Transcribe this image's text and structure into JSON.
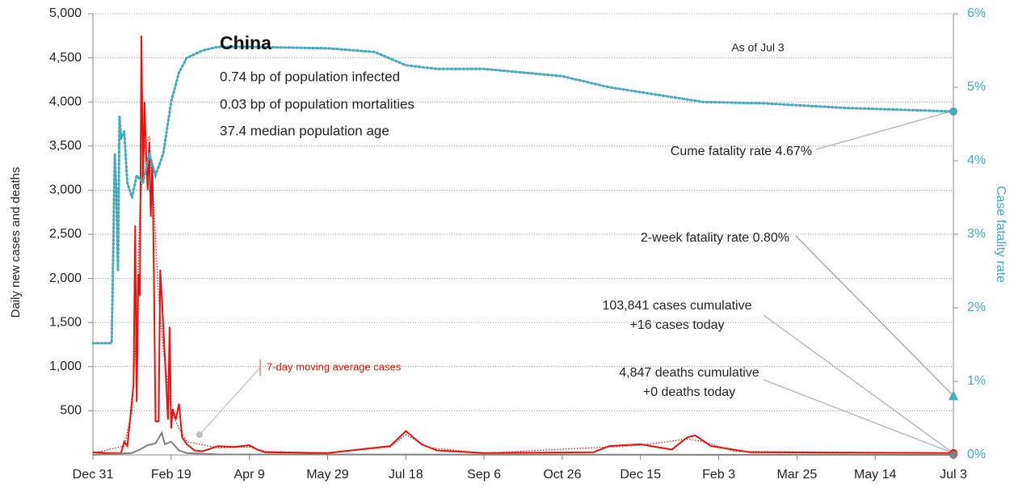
{
  "chart_data": {
    "type": "line",
    "y_axis_label": "Daily new cases and deaths",
    "y2_axis_label": "Case fatality rate",
    "xlim": [
      0,
      550
    ],
    "xticks": [
      {
        "value": 0,
        "label": "Dec 31"
      },
      {
        "value": 50,
        "label": "Feb 19"
      },
      {
        "value": 100,
        "label": "Apr 9"
      },
      {
        "value": 150,
        "label": "May 29"
      },
      {
        "value": 200,
        "label": "Jul 18"
      },
      {
        "value": 250,
        "label": "Sep 6"
      },
      {
        "value": 300,
        "label": "Oct 26"
      },
      {
        "value": 350,
        "label": "Dec 15"
      },
      {
        "value": 400,
        "label": "Feb 3"
      },
      {
        "value": 450,
        "label": "Mar 25"
      },
      {
        "value": 500,
        "label": "May 14"
      },
      {
        "value": 550,
        "label": "Jul 3"
      }
    ],
    "ylim": [
      0,
      5000
    ],
    "yticks": [
      500,
      {
        "value": 1000,
        "label": "1,000"
      },
      {
        "value": 1500,
        "label": "1,500"
      },
      {
        "value": 2000,
        "label": "2,000"
      },
      {
        "value": 2500,
        "label": "2,500"
      },
      {
        "value": 3000,
        "label": "3,000"
      },
      {
        "value": 3500,
        "label": "3,500"
      },
      {
        "value": 4000,
        "label": "4,000"
      },
      {
        "value": 4500,
        "label": "4,500"
      },
      {
        "value": 5000,
        "label": "5,000"
      }
    ],
    "y2lim": [
      0,
      6
    ],
    "y2ticks": [
      {
        "value": 0,
        "label": "0%"
      },
      {
        "value": 1,
        "label": "1%"
      },
      {
        "value": 2,
        "label": "2%"
      },
      {
        "value": 3,
        "label": "3%"
      },
      {
        "value": 4,
        "label": "4%"
      },
      {
        "value": 5,
        "label": "5%"
      },
      {
        "value": 6,
        "label": "6%"
      }
    ],
    "grid": true,
    "series": [
      {
        "color": "#e8120c",
        "dash": "solid",
        "x": [
          0,
          10,
          18,
          20,
          22,
          24,
          26,
          27,
          28,
          29,
          30,
          31,
          32,
          33,
          34,
          35,
          36,
          37,
          38,
          39,
          40,
          42,
          43,
          44,
          46,
          48,
          49,
          50,
          51,
          53,
          55,
          57,
          60,
          65,
          70,
          80,
          90,
          100,
          105,
          110,
          150,
          190,
          200,
          210,
          220,
          250,
          320,
          330,
          350,
          370,
          380,
          385,
          395,
          420,
          550
        ],
        "values": [
          30,
          20,
          20,
          150,
          100,
          450,
          800,
          2600,
          600,
          2050,
          1800,
          4750,
          3100,
          4000,
          3400,
          3000,
          3550,
          2700,
          3300,
          2000,
          380,
          380,
          2100,
          1800,
          1100,
          400,
          1450,
          300,
          520,
          400,
          580,
          200,
          120,
          50,
          40,
          100,
          90,
          110,
          60,
          30,
          20,
          100,
          270,
          120,
          50,
          20,
          30,
          100,
          120,
          60,
          200,
          220,
          100,
          30,
          20
        ]
      },
      {
        "color": "#e8120c",
        "dash": "dotted",
        "x": [
          0,
          20,
          25,
          28,
          30,
          33,
          36,
          39,
          42,
          45,
          50,
          55,
          60,
          80,
          100,
          110,
          150,
          190,
          200,
          215,
          250,
          330,
          350,
          380,
          390,
          410,
          550
        ],
        "values": [
          20,
          100,
          500,
          1500,
          2800,
          3500,
          3600,
          2800,
          1800,
          1200,
          500,
          300,
          150,
          80,
          90,
          40,
          20,
          90,
          230,
          80,
          20,
          90,
          110,
          180,
          150,
          40,
          20
        ]
      },
      {
        "color": "#808080",
        "dash": "solid",
        "x": [
          0,
          25,
          30,
          35,
          40,
          44,
          46,
          50,
          55,
          60,
          80,
          550
        ],
        "values": [
          0,
          20,
          60,
          110,
          130,
          250,
          120,
          150,
          50,
          20,
          5,
          0
        ]
      },
      {
        "color": "#45aabb",
        "dash": "dotted",
        "axis": "y2",
        "x": [
          0,
          12,
          13,
          14,
          15,
          16,
          17,
          18,
          20,
          22,
          25,
          28,
          32,
          36,
          40,
          45,
          50,
          55,
          60,
          70,
          80,
          100,
          150,
          180,
          200,
          220,
          250,
          300,
          330,
          360,
          390,
          430,
          480,
          550
        ],
        "values": [
          1.52,
          1.52,
          2.8,
          4.1,
          3.6,
          2.5,
          4.6,
          4.3,
          4.4,
          3.7,
          3.5,
          3.8,
          3.7,
          4.1,
          3.8,
          4.1,
          4.8,
          5.2,
          5.4,
          5.5,
          5.55,
          5.55,
          5.53,
          5.48,
          5.3,
          5.25,
          5.25,
          5.15,
          5.0,
          4.9,
          4.8,
          4.78,
          4.72,
          4.67
        ]
      }
    ],
    "two_week_rate": 0.8,
    "annotations": [
      {
        "text": "China"
      },
      {
        "text": "0.74 bp of population infected"
      },
      {
        "text": "0.03 bp of population mortalities"
      },
      {
        "text": "37.4 median population age"
      },
      {
        "text": "As of Jul 3"
      },
      {
        "text": "Cume fatality rate 4.67%"
      },
      {
        "text": "2-week fatality rate 0.80%"
      },
      {
        "text": "103,841 cases cumulative"
      },
      {
        "text": "+16 cases today"
      },
      {
        "text": "4,847 deaths cumulative"
      },
      {
        "text": "+0 deaths today"
      },
      {
        "text": "7-day moving average cases"
      }
    ]
  }
}
